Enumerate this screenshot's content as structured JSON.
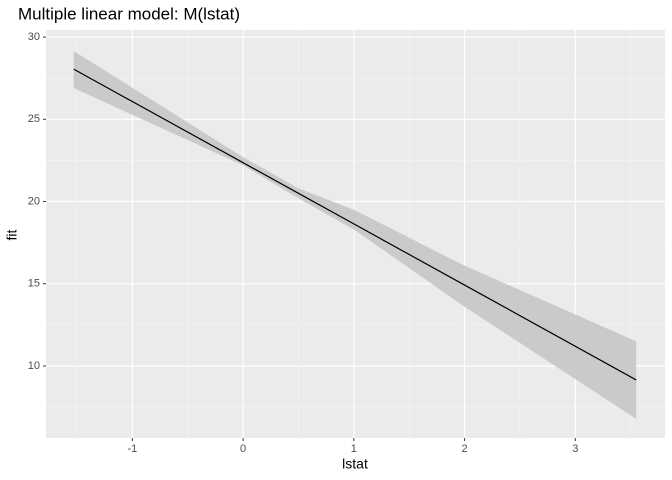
{
  "chart_data": {
    "type": "line",
    "title": "Multiple linear model: M(lstat)",
    "x_label": "lstat",
    "y_label": "fit",
    "x": [
      -1.53,
      0,
      0.5,
      1,
      2,
      3.55
    ],
    "series": [
      {
        "name": "fit",
        "color": "#000000",
        "values": [
          28.05,
          22.36,
          20.5,
          18.64,
          14.92,
          9.15
        ]
      }
    ],
    "band": {
      "color": "#c8c8c8",
      "lower": [
        26.9,
        22.2,
        20.2,
        18.3,
        13.6,
        6.78
      ],
      "upper": [
        29.15,
        22.7,
        20.8,
        19.5,
        16.1,
        11.5
      ]
    },
    "xlim": [
      -1.78,
      3.81
    ],
    "ylim": [
      5.62,
      30.43
    ],
    "xticks": [
      -1,
      0,
      1,
      2,
      3
    ],
    "yticks": [
      10,
      15,
      20,
      25,
      30
    ],
    "xminor": [
      -1.5,
      -0.5,
      0.5,
      1.5,
      2.5,
      3.5
    ],
    "yminor": [
      7.5,
      12.5,
      17.5,
      22.5,
      27.5
    ],
    "grid": true
  }
}
